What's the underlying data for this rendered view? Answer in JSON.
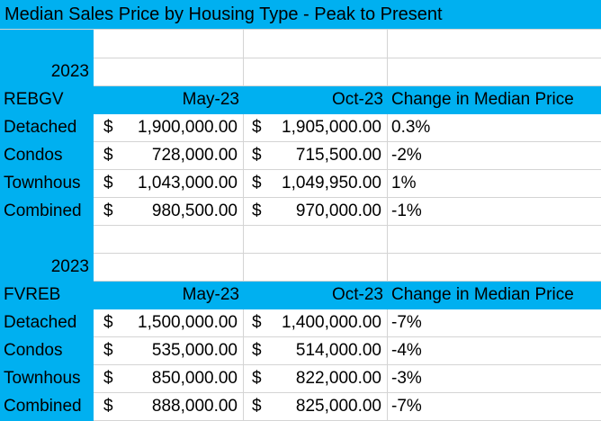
{
  "title": "Median Sales Price by Housing Type - Peak to Present",
  "sections": [
    {
      "year": "2023",
      "board": "REBGV",
      "col_a": "May-23",
      "col_b": "Oct-23",
      "col_c": "Change in Median Price",
      "rows": [
        {
          "type": "Detached",
          "a": "1,900,000.00",
          "b": "1,905,000.00",
          "change": "0.3%"
        },
        {
          "type": "Condos",
          "a": "728,000.00",
          "b": "715,500.00",
          "change": "-2%"
        },
        {
          "type": "Townhous",
          "a": "1,043,000.00",
          "b": "1,049,950.00",
          "change": "1%"
        },
        {
          "type": "Combined",
          "a": "980,500.00",
          "b": "970,000.00",
          "change": "-1%"
        }
      ]
    },
    {
      "year": "2023",
      "board": "FVREB",
      "col_a": "May-23",
      "col_b": "Oct-23",
      "col_c": "Change in Median Price",
      "rows": [
        {
          "type": "Detached",
          "a": "1,500,000.00",
          "b": "1,400,000.00",
          "change": "-7%"
        },
        {
          "type": "Condos",
          "a": "535,000.00",
          "b": "514,000.00",
          "change": "-4%"
        },
        {
          "type": "Townhous",
          "a": "850,000.00",
          "b": "822,000.00",
          "change": "-3%"
        },
        {
          "type": "Combined",
          "a": "888,000.00",
          "b": "825,000.00",
          "change": "-7%"
        }
      ]
    }
  ],
  "currency_symbol": "$",
  "colors": {
    "header_blue": "#00b0f0",
    "grid": "#d4d4d4"
  }
}
